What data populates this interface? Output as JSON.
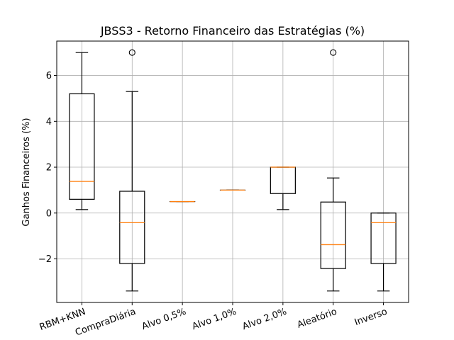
{
  "chart_data": {
    "type": "box",
    "title": "JBSS3 - Retorno Financeiro das Estratégias (%)",
    "xlabel": "",
    "ylabel": "Ganhos Financeiros (%)",
    "ylim": [
      -3.9,
      7.5
    ],
    "yticks": [
      -2,
      0,
      2,
      4,
      6
    ],
    "ytick_labels": [
      "−2",
      "0",
      "2",
      "4",
      "6"
    ],
    "grid": true,
    "categories": [
      "RBM+KNN",
      "CompraDiária",
      "Alvo 0,5%",
      "Alvo 1,0%",
      "Alvo 2,0%",
      "Aleatório",
      "Inverso"
    ],
    "boxes": [
      {
        "whisker_low": 0.15,
        "q1": 0.6,
        "median": 1.38,
        "q3": 5.2,
        "whisker_high": 7.0,
        "outliers": []
      },
      {
        "whisker_low": -3.4,
        "q1": -2.2,
        "median": -0.42,
        "q3": 0.95,
        "whisker_high": 5.3,
        "outliers": [
          7.0
        ]
      },
      {
        "whisker_low": 0.5,
        "q1": 0.5,
        "median": 0.5,
        "q3": 0.5,
        "whisker_high": 0.5,
        "outliers": []
      },
      {
        "whisker_low": 1.0,
        "q1": 1.0,
        "median": 1.0,
        "q3": 1.0,
        "whisker_high": 1.0,
        "outliers": []
      },
      {
        "whisker_low": 0.15,
        "q1": 0.85,
        "median": 2.0,
        "q3": 2.0,
        "whisker_high": 2.0,
        "outliers": []
      },
      {
        "whisker_low": -3.4,
        "q1": -2.42,
        "median": -1.38,
        "q3": 0.48,
        "whisker_high": 1.53,
        "outliers": [
          7.0
        ]
      },
      {
        "whisker_low": -3.4,
        "q1": -2.2,
        "median": -0.42,
        "q3": 0.0,
        "whisker_high": 0.0,
        "outliers": []
      }
    ],
    "colors": {
      "box": "#000000",
      "median": "#ff7f0e",
      "grid": "#b0b0b0"
    }
  }
}
